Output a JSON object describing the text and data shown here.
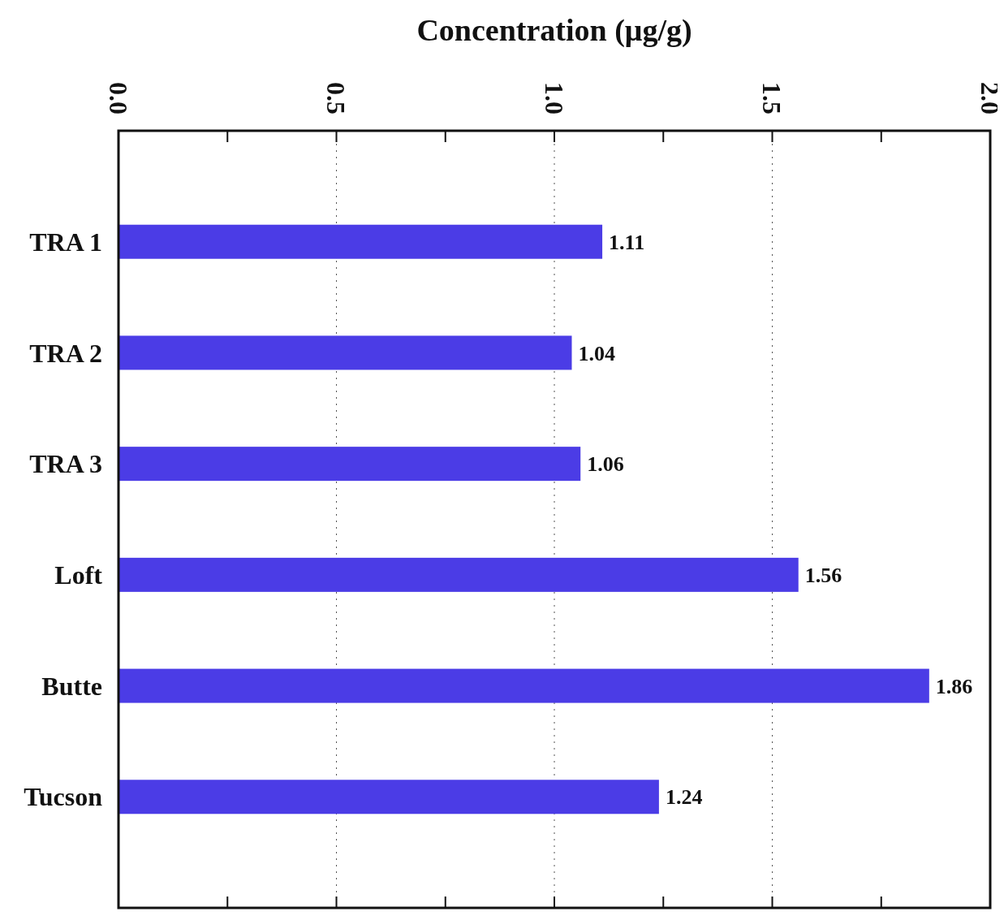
{
  "chart_data": {
    "type": "bar",
    "orientation": "horizontal",
    "xlabel": "Concentration (μg/g)",
    "categories": [
      "TRA 1",
      "TRA 2",
      "TRA 3",
      "Loft",
      "Butte",
      "Tucson"
    ],
    "values": [
      1.11,
      1.04,
      1.06,
      1.56,
      1.86,
      1.24
    ],
    "color": "#4b3ce6",
    "data_labels": true,
    "xlim": [
      0,
      2
    ],
    "xticks": [
      "0.0",
      {
        "value": 0.25,
        "label": null
      },
      "0.5",
      {
        "value": 0.75,
        "label": null
      },
      "1.0",
      {
        "value": 1.25,
        "label": null
      },
      "1.5",
      {
        "value": 1.75,
        "label": null
      },
      "2.0"
    ],
    "grid": "x"
  }
}
